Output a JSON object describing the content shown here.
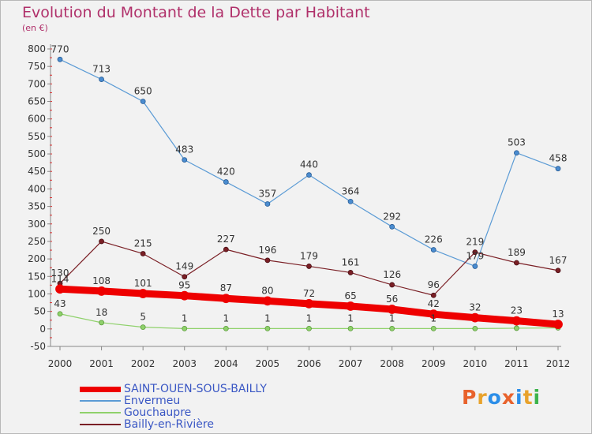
{
  "header": {
    "title": "Evolution du Montant de la Dette par Habitant",
    "subtitle": "(en €)"
  },
  "logo": {
    "text": "Proxiti",
    "colors": [
      "#e8622c",
      "#e8a22c",
      "#2c8ee8",
      "#e8622c",
      "#2c8ee8",
      "#e8a22c",
      "#3cb34a"
    ]
  },
  "chart_data": {
    "type": "line",
    "title": "Evolution du Montant de la Dette par Habitant",
    "subtitle": "(en €)",
    "x": [
      "2000",
      "2001",
      "2002",
      "2003",
      "2004",
      "2005",
      "2006",
      "2007",
      "2008",
      "2009",
      "2010",
      "2011",
      "2012"
    ],
    "ylim": [
      -50,
      800
    ],
    "yticks": [
      -50,
      0,
      50,
      100,
      150,
      200,
      250,
      300,
      350,
      400,
      450,
      500,
      550,
      600,
      650,
      700,
      750,
      800
    ],
    "grid": false,
    "legend_position": "bottom-left",
    "series": [
      {
        "name": "SAINT-OUEN-SOUS-BAILLY",
        "color": "#ee0000",
        "values": [
          114,
          108,
          101,
          95,
          87,
          80,
          72,
          65,
          56,
          42,
          32,
          23,
          13
        ],
        "labels": [
          "114",
          "108",
          "101",
          "95",
          "87",
          "80",
          "72",
          "65",
          "56",
          "42",
          "32",
          "23",
          "13"
        ]
      },
      {
        "name": "Envermeu",
        "color": "#5b9bd5",
        "values": [
          770,
          713,
          650,
          483,
          420,
          357,
          440,
          364,
          292,
          226,
          179,
          503,
          458
        ],
        "labels": [
          "770",
          "713",
          "650",
          "483",
          "420",
          "357",
          "440",
          "364",
          "292",
          "226",
          "179",
          "503",
          "458"
        ]
      },
      {
        "name": "Gouchaupre",
        "color": "#8fd16b",
        "values": [
          43,
          18,
          5,
          1,
          1,
          1,
          1,
          1,
          1,
          1,
          1,
          2,
          3
        ],
        "labels": [
          "43",
          "18",
          "5",
          "1",
          "1",
          "1",
          "1",
          "1",
          "1",
          "1",
          "",
          "",
          ""
        ]
      },
      {
        "name": "Bailly-en-Rivière",
        "color": "#7a1f25",
        "values": [
          130,
          250,
          215,
          149,
          227,
          196,
          179,
          161,
          126,
          96,
          219,
          189,
          167
        ],
        "labels": [
          "130",
          "250",
          "215",
          "149",
          "227",
          "196",
          "179",
          "161",
          "126",
          "96",
          "219",
          "189",
          "167"
        ]
      }
    ]
  }
}
